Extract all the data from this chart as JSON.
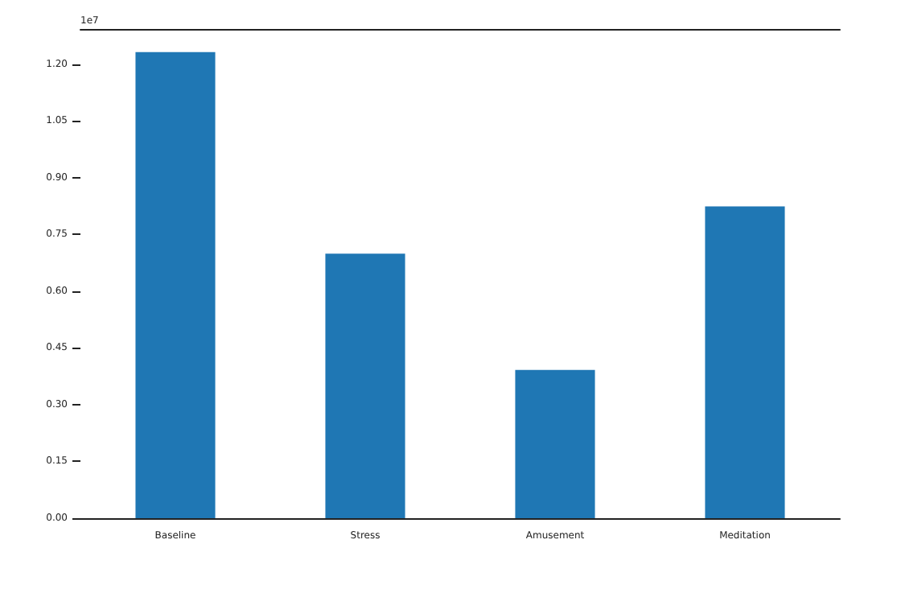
{
  "chart_data": {
    "type": "bar",
    "categories": [
      "Baseline",
      "Stress",
      "Amusement",
      "Meditation"
    ],
    "values": [
      1.232,
      0.699,
      0.392,
      0.824
    ],
    "color": "#1f77b4",
    "ylim": [
      0,
      1.293
    ],
    "yticks": [
      {
        "value": 0,
        "label": "0.00"
      },
      {
        "value": 0.15,
        "label": "0.15"
      },
      {
        "value": 0.3,
        "label": "0.30"
      },
      {
        "value": 0.45,
        "label": "0.45"
      },
      {
        "value": 0.6,
        "label": "0.60"
      },
      {
        "value": 0.75,
        "label": "0.75"
      },
      {
        "value": 0.9,
        "label": "0.90"
      },
      {
        "value": 1.05,
        "label": "1.05"
      },
      {
        "value": 1.2,
        "label": "1.20"
      }
    ],
    "annotations": [
      "1e7"
    ],
    "grid": false
  }
}
